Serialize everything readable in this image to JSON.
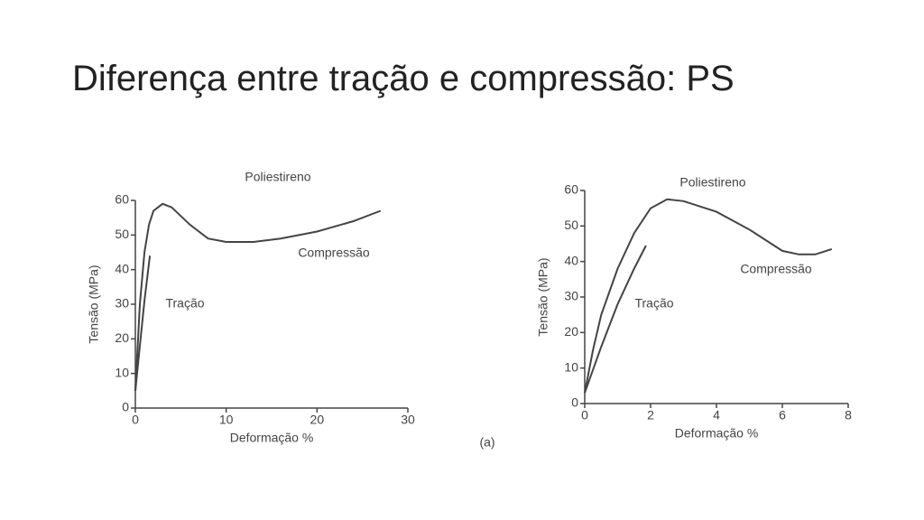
{
  "title": "Diferença entre tração e compressão: PS",
  "chart_data": [
    {
      "type": "line",
      "annotation": "Poliestireno",
      "caption": "(a)",
      "xlabel": "Deformação %",
      "ylabel": "Tensão (MPa)",
      "xlim": [
        0,
        30
      ],
      "xticks": [
        0,
        10,
        20,
        30
      ],
      "ylim": [
        0,
        60
      ],
      "yticks": [
        0,
        10,
        20,
        30,
        40,
        50,
        60
      ],
      "series": [
        {
          "name": "Compressão",
          "color": "#444444",
          "x": [
            0,
            0.5,
            1,
            1.5,
            2,
            3,
            4,
            6,
            8,
            10,
            13,
            16,
            20,
            24,
            27
          ],
          "values": [
            5,
            30,
            45,
            53,
            57,
            59,
            58,
            53,
            49,
            48,
            48,
            49,
            51,
            54,
            57
          ]
        },
        {
          "name": "Tração",
          "color": "#444444",
          "x": [
            0,
            0.5,
            1,
            1.6
          ],
          "values": [
            5,
            18,
            31,
            44
          ]
        }
      ]
    },
    {
      "type": "line",
      "annotation": "Poliestireno",
      "xlabel": "Deformação %",
      "ylabel": "Tensão (MPa)",
      "xlim": [
        0,
        8
      ],
      "xticks": [
        0,
        2,
        4,
        6,
        8
      ],
      "ylim": [
        0,
        60
      ],
      "yticks": [
        0,
        10,
        20,
        30,
        40,
        50,
        60
      ],
      "series": [
        {
          "name": "Compressão",
          "color": "#444444",
          "x": [
            0,
            0.25,
            0.5,
            1,
            1.5,
            2,
            2.5,
            3,
            4,
            5,
            6,
            6.5,
            7,
            7.5
          ],
          "values": [
            3,
            15,
            25,
            38,
            48,
            55,
            57.5,
            57,
            54,
            49,
            43,
            42,
            42,
            43.5
          ]
        },
        {
          "name": "Tração",
          "color": "#444444",
          "x": [
            0,
            0.5,
            1,
            1.5,
            1.86
          ],
          "values": [
            3,
            16,
            28,
            38,
            44.5
          ]
        }
      ]
    }
  ]
}
